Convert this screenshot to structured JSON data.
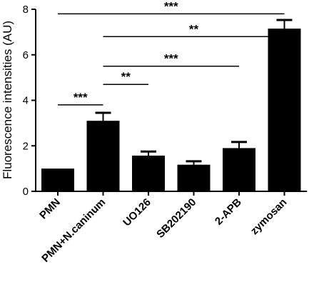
{
  "chart_data": {
    "type": "bar",
    "ylabel": "Fluorescence intensities (AU)",
    "xlabel": "",
    "ylim": [
      0,
      8
    ],
    "yticks": [
      0,
      2,
      4,
      6,
      8
    ],
    "grid": false,
    "categories": [
      "PMN",
      "PMN+N.caninum",
      "UO126",
      "SB202190",
      "2-APB",
      "zymosan"
    ],
    "values": [
      1.0,
      3.1,
      1.57,
      1.17,
      1.9,
      7.15
    ],
    "errors": [
      0.0,
      0.35,
      0.18,
      0.15,
      0.27,
      0.38
    ],
    "bar_color": "#000000",
    "significance": [
      {
        "from": 0,
        "to": 5,
        "y": 7.8,
        "label": "***"
      },
      {
        "from": 1,
        "to": 5,
        "y": 6.8,
        "label": "**"
      },
      {
        "from": 1,
        "to": 4,
        "y": 5.5,
        "label": "***"
      },
      {
        "from": 1,
        "to": 2,
        "y": 4.7,
        "label": "**"
      },
      {
        "from": 0,
        "to": 1,
        "y": 3.8,
        "label": "***"
      }
    ]
  }
}
